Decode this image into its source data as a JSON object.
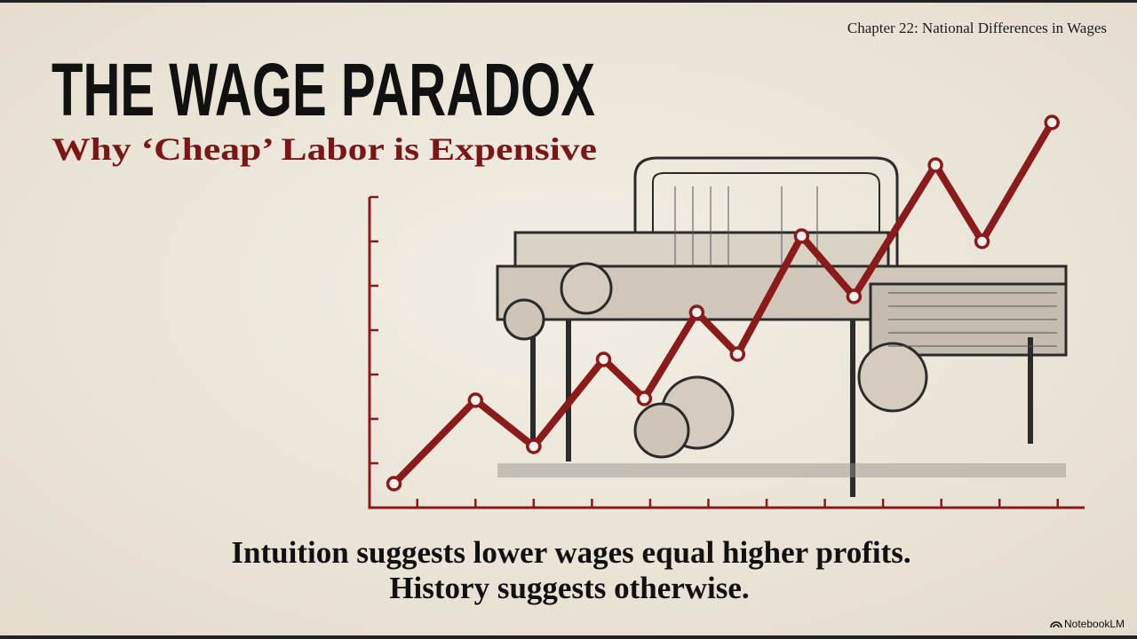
{
  "header": {
    "chapter": "Chapter 22: National Differences in Wages",
    "title": "THE WAGE PARADOX",
    "subtitle": "Why ‘Cheap’ Labor is Expensive"
  },
  "caption": {
    "line1": "Intuition suggests lower wages equal higher profits.",
    "line2": "History suggests otherwise."
  },
  "branding": "NotebookLM",
  "chart_data": {
    "type": "line",
    "x": [
      0.6,
      2,
      3,
      4.2,
      4.9,
      5.8,
      6.5,
      7.6,
      8.5,
      9.9,
      10.7,
      11.9
    ],
    "values": [
      0.54,
      2.42,
      1.38,
      3.34,
      2.46,
      4.4,
      3.46,
      6.12,
      4.76,
      7.72,
      6.0,
      8.68
    ],
    "color": "#8b1a1a",
    "xlim": [
      0.18,
      12.4
    ],
    "xticks": [
      1,
      2,
      3,
      4,
      5,
      6,
      7,
      8,
      9,
      10,
      11,
      12
    ],
    "ylim": [
      0,
      7
    ],
    "yticks": [
      1,
      2,
      3,
      4,
      5,
      6,
      7
    ]
  }
}
